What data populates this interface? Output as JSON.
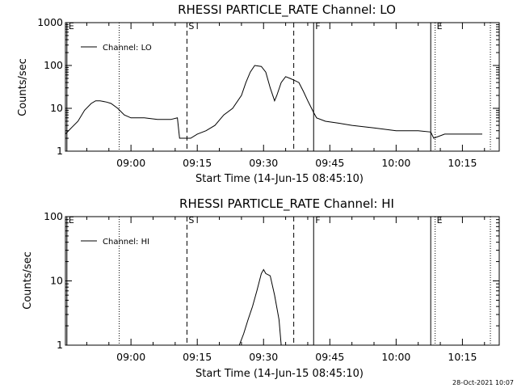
{
  "chart_data": [
    {
      "type": "line",
      "title": "RHESSI PARTICLE_RATE Channel: LO",
      "xlabel": "Start Time (14-Jun-15 08:45:10)",
      "ylabel": "Counts/sec",
      "yscale": "log",
      "ylim": [
        1,
        1000
      ],
      "y_ticks": [
        1,
        10,
        100,
        1000
      ],
      "y_tick_labels": [
        "1",
        "10",
        "100",
        "1000"
      ],
      "xlim": [
        "08:45:10",
        "10:23:20"
      ],
      "x_ticks": [
        "09:00",
        "09:15",
        "09:30",
        "09:45",
        "10:00",
        "10:15"
      ],
      "legend": {
        "position": "top-left",
        "entries": [
          "Channel: LO"
        ]
      },
      "markers": [
        {
          "time": "08:45:30",
          "style": "solid",
          "label": "E"
        },
        {
          "time": "08:57:20",
          "style": "dotted",
          "label": ""
        },
        {
          "time": "09:12:40",
          "style": "dashed",
          "label": "S"
        },
        {
          "time": "09:36:50",
          "style": "dashed",
          "label": ""
        },
        {
          "time": "09:41:20",
          "style": "solid",
          "label": "F"
        },
        {
          "time": "10:07:50",
          "style": "solid",
          "label": ""
        },
        {
          "time": "10:08:50",
          "style": "dotted",
          "label": "E"
        },
        {
          "time": "10:21:20",
          "style": "dotted",
          "label": ""
        }
      ],
      "series": [
        {
          "name": "Channel: LO",
          "x": [
            "08:45:10",
            "08:46:30",
            "08:48:00",
            "08:49:30",
            "08:51:00",
            "08:52:00",
            "08:53:00",
            "08:54:30",
            "08:55:30",
            "08:57:00",
            "08:58:30",
            "09:00:00",
            "09:03:00",
            "09:06:00",
            "09:09:00",
            "09:10:30",
            "09:11:00",
            "09:12:00",
            "09:13:30",
            "09:15:00",
            "09:17:00",
            "09:19:00",
            "09:21:00",
            "09:23:00",
            "09:25:00",
            "09:26:00",
            "09:27:00",
            "09:28:00",
            "09:29:30",
            "09:30:30",
            "09:31:30",
            "09:32:30",
            "09:33:00",
            "09:34:00",
            "09:35:00",
            "09:36:00",
            "09:37:00",
            "09:38:00",
            "09:39:00",
            "09:40:00",
            "09:41:20",
            "09:42:00",
            "09:44:00",
            "09:47:00",
            "09:50:00",
            "09:55:00",
            "10:00:00",
            "10:05:00",
            "10:07:50",
            "10:08:30",
            "10:11:00",
            "10:15:00",
            "10:18:00",
            "10:19:30"
          ],
          "values": [
            2.5,
            3.5,
            5,
            9,
            13,
            15,
            15,
            14,
            13,
            10,
            7,
            6,
            6,
            5.5,
            5.5,
            6,
            2,
            2,
            2,
            2.5,
            3,
            4,
            7,
            10,
            20,
            40,
            70,
            100,
            95,
            70,
            30,
            15,
            20,
            40,
            55,
            50,
            45,
            40,
            25,
            15,
            8,
            6,
            5,
            4.5,
            4,
            3.5,
            3,
            3,
            2.8,
            2,
            2.5,
            2.5,
            2.5,
            2.5
          ]
        }
      ]
    },
    {
      "type": "line",
      "title": "RHESSI PARTICLE_RATE Channel: HI",
      "xlabel": "Start Time (14-Jun-15 08:45:10)",
      "ylabel": "Counts/sec",
      "yscale": "log",
      "ylim": [
        1,
        100
      ],
      "y_ticks": [
        1,
        10,
        100
      ],
      "y_tick_labels": [
        "1",
        "10",
        "100"
      ],
      "xlim": [
        "08:45:10",
        "10:23:20"
      ],
      "x_ticks": [
        "09:00",
        "09:15",
        "09:30",
        "09:45",
        "10:00",
        "10:15"
      ],
      "legend": {
        "position": "top-left",
        "entries": [
          "Channel: HI"
        ]
      },
      "markers": [
        {
          "time": "08:45:30",
          "style": "solid",
          "label": "E"
        },
        {
          "time": "08:57:20",
          "style": "dotted",
          "label": ""
        },
        {
          "time": "09:12:40",
          "style": "dashed",
          "label": "S"
        },
        {
          "time": "09:36:50",
          "style": "dashed",
          "label": ""
        },
        {
          "time": "09:41:20",
          "style": "solid",
          "label": "F"
        },
        {
          "time": "10:07:50",
          "style": "solid",
          "label": ""
        },
        {
          "time": "10:08:50",
          "style": "dotted",
          "label": "E"
        },
        {
          "time": "10:21:20",
          "style": "dotted",
          "label": ""
        }
      ],
      "series": [
        {
          "name": "Channel: HI",
          "x": [
            "09:24:30",
            "09:25:30",
            "09:26:30",
            "09:27:30",
            "09:28:30",
            "09:29:30",
            "09:30:00",
            "09:30:30",
            "09:31:30",
            "09:32:30",
            "09:33:30",
            "09:34:00"
          ],
          "values": [
            1,
            1.5,
            2.5,
            4,
            7,
            13,
            15,
            13,
            12,
            6,
            2.5,
            1
          ]
        }
      ]
    }
  ],
  "footer": {
    "timestamp": "28-Oct-2021 10:07"
  }
}
